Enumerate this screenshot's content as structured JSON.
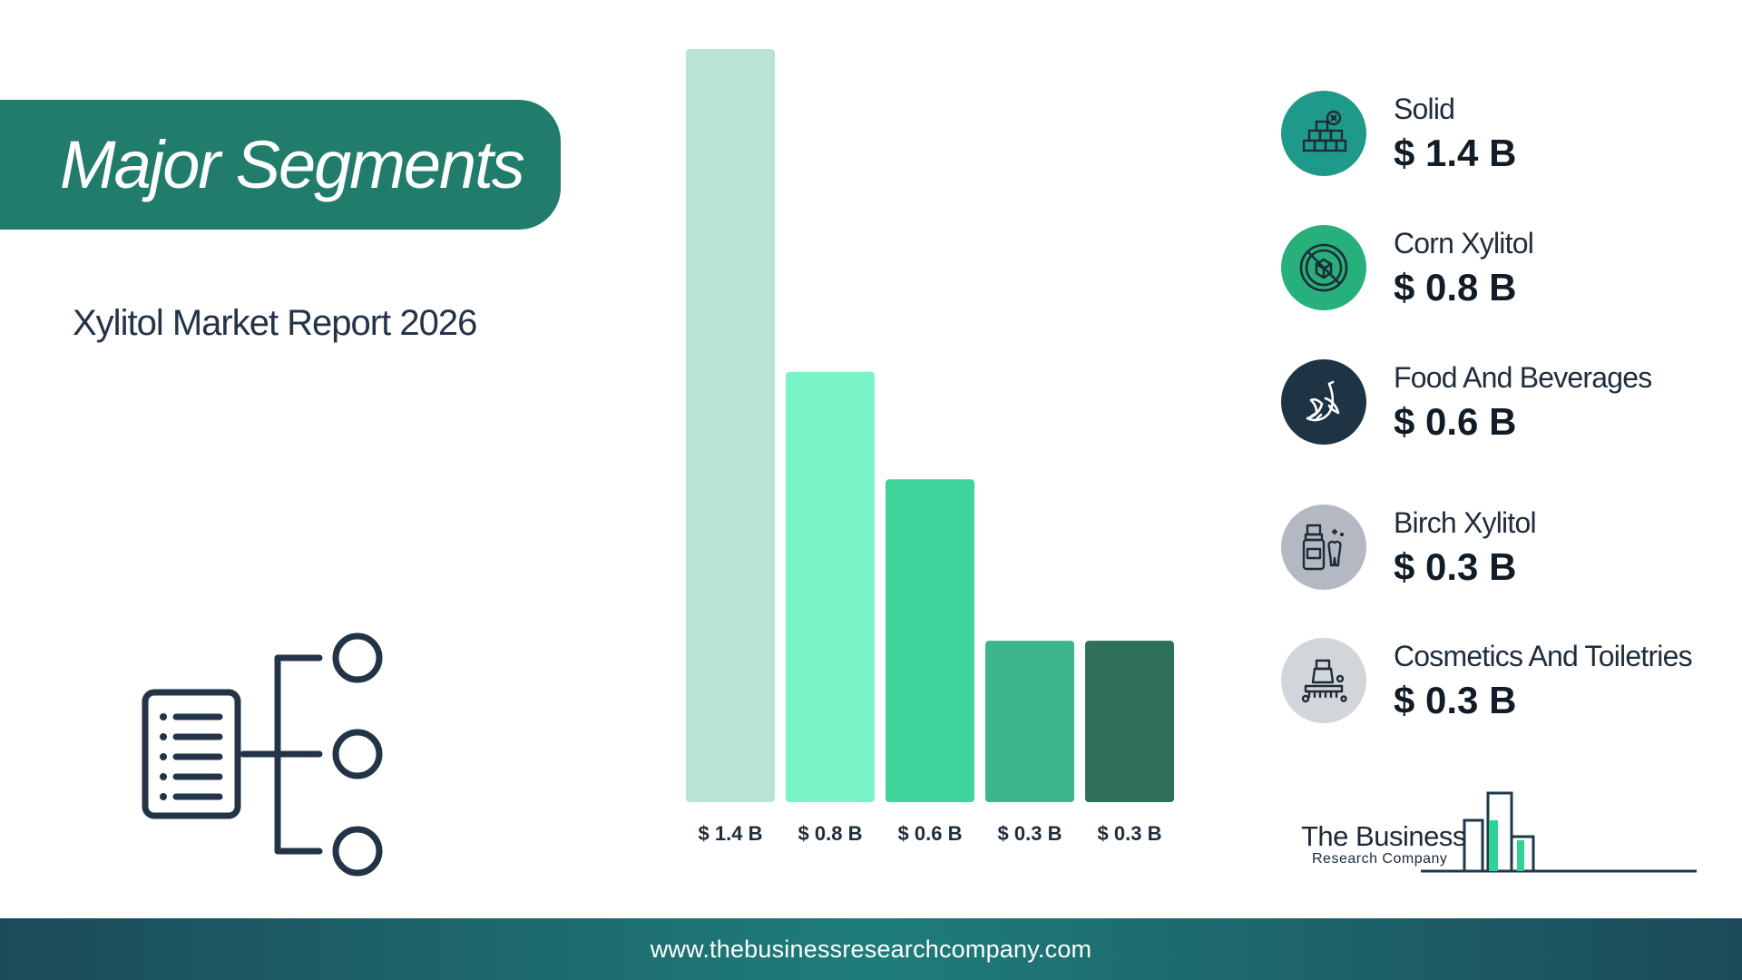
{
  "header": {
    "title": "Major Segments",
    "subtitle": "Xylitol Market Report 2026"
  },
  "chart_data": {
    "type": "bar",
    "categories": [
      "Solid",
      "Corn Xylitol",
      "Food And Beverages",
      "Birch Xylitol",
      "Cosmetics And Toiletries"
    ],
    "values": [
      1.4,
      0.8,
      0.6,
      0.3,
      0.3
    ],
    "value_labels": [
      "$ 1.4 B",
      "$ 0.8 B",
      "$ 0.6 B",
      "$ 0.3 B",
      "$ 0.3 B"
    ],
    "bar_colors": [
      "#b9e3d3",
      "#78f4c6",
      "#3ed49b",
      "#3cb58a",
      "#2e7059"
    ],
    "unit": "$ B",
    "ylim": [
      0,
      1.4
    ],
    "grid": false
  },
  "legend": {
    "items": [
      {
        "name": "Solid",
        "value": "$ 1.4 B",
        "icon": "sugar-cubes-icon",
        "color": "#1f9a8a"
      },
      {
        "name": "Corn Xylitol",
        "value": "$ 0.8 B",
        "icon": "no-sugar-icon",
        "color": "#27b07c"
      },
      {
        "name": "Food And Beverages",
        "value": "$ 0.6 B",
        "icon": "banana-icon",
        "color": "#1e3344"
      },
      {
        "name": "Birch Xylitol",
        "value": "$ 0.3 B",
        "icon": "mouthwash-tooth-icon",
        "color": "#b4b8c2"
      },
      {
        "name": "Cosmetics And Toiletries",
        "value": "$ 0.3 B",
        "icon": "soap-brush-icon",
        "color": "#d2d5da"
      }
    ]
  },
  "logo": {
    "line1": "The Business",
    "line2": "Research Company"
  },
  "footer": {
    "url": "www.thebusinessresearchcompany.com"
  }
}
